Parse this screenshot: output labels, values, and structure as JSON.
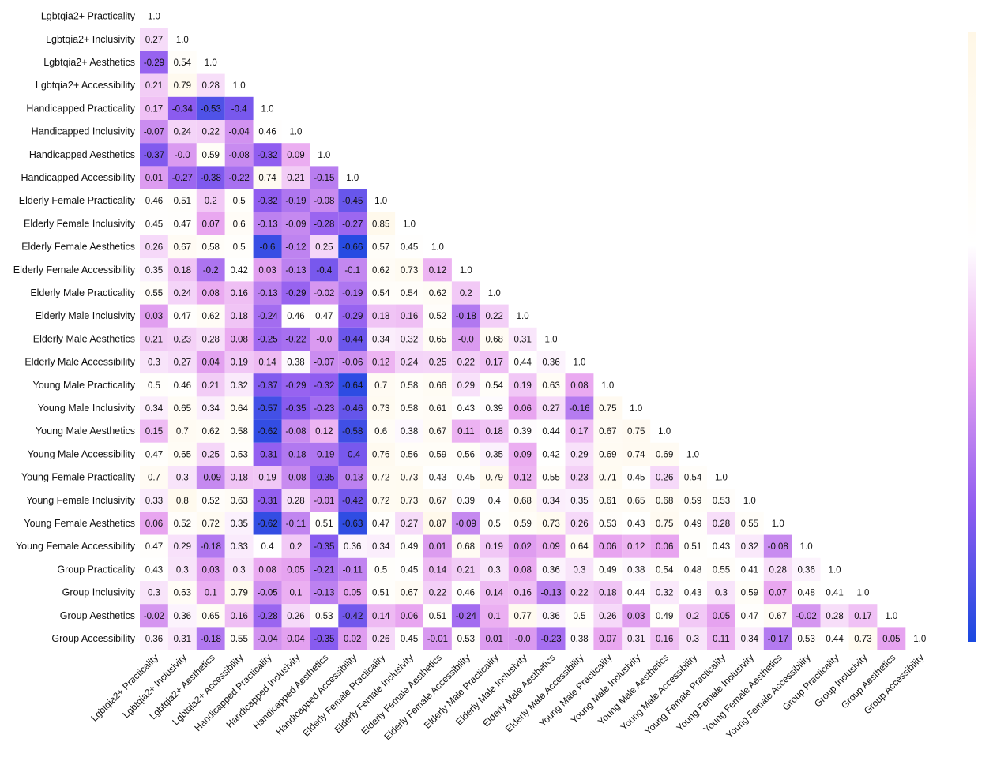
{
  "chart_data": {
    "type": "heatmap",
    "labels": [
      "Lgbtqia2+ Practicality",
      "Lgbtqia2+ Inclusivity",
      "Lgbtqia2+ Aesthetics",
      "Lgbtqia2+ Accessibility",
      "Handicapped Practicality",
      "Handicapped Inclusivity",
      "Handicapped Aesthetics",
      "Handicapped Accessibility",
      "Elderly Female Practicality",
      "Elderly Female Inclusivity",
      "Elderly Female Aesthetics",
      "Elderly Female Accessibility",
      "Elderly Male Practicality",
      "Elderly Male Inclusivity",
      "Elderly Male Aesthetics",
      "Elderly Male Accessibility",
      "Young Male Practicality",
      "Young Male Inclusivity",
      "Young Male Aesthetics",
      "Young Male Accessibility",
      "Young Female Practicality",
      "Young Female Inclusivity",
      "Young Female Aesthetics",
      "Young Female Accessibility",
      "Group Practicality",
      "Group Inclusivity",
      "Group Aesthetics",
      "Group Accessibility"
    ],
    "matrix": [
      [
        "1.0"
      ],
      [
        "0.27",
        "1.0"
      ],
      [
        "-0.29",
        "0.54",
        "1.0"
      ],
      [
        "0.21",
        "0.79",
        "0.28",
        "1.0"
      ],
      [
        "0.17",
        "-0.34",
        "-0.53",
        "-0.4",
        "1.0"
      ],
      [
        "-0.07",
        "0.24",
        "0.22",
        "-0.04",
        "0.46",
        "1.0"
      ],
      [
        "-0.37",
        "-0.0",
        "0.59",
        "-0.08",
        "-0.32",
        "0.09",
        "1.0"
      ],
      [
        "0.01",
        "-0.27",
        "-0.38",
        "-0.22",
        "0.74",
        "0.21",
        "-0.15",
        "1.0"
      ],
      [
        "0.46",
        "0.51",
        "0.2",
        "0.5",
        "-0.32",
        "-0.19",
        "-0.08",
        "-0.45",
        "1.0"
      ],
      [
        "0.45",
        "0.47",
        "0.07",
        "0.6",
        "-0.13",
        "-0.09",
        "-0.28",
        "-0.27",
        "0.85",
        "1.0"
      ],
      [
        "0.26",
        "0.67",
        "0.58",
        "0.5",
        "-0.6",
        "-0.12",
        "0.25",
        "-0.66",
        "0.57",
        "0.45",
        "1.0"
      ],
      [
        "0.35",
        "0.18",
        "-0.2",
        "0.42",
        "0.03",
        "-0.13",
        "-0.4",
        "-0.1",
        "0.62",
        "0.73",
        "0.12",
        "1.0"
      ],
      [
        "0.55",
        "0.24",
        "0.08",
        "0.16",
        "-0.13",
        "-0.29",
        "-0.02",
        "-0.19",
        "0.54",
        "0.54",
        "0.62",
        "0.2",
        "1.0"
      ],
      [
        "0.03",
        "0.47",
        "0.62",
        "0.18",
        "-0.24",
        "0.46",
        "0.47",
        "-0.29",
        "0.18",
        "0.16",
        "0.52",
        "-0.18",
        "0.22",
        "1.0"
      ],
      [
        "0.21",
        "0.23",
        "0.28",
        "0.08",
        "-0.25",
        "-0.22",
        "-0.0",
        "-0.44",
        "0.34",
        "0.32",
        "0.65",
        "-0.0",
        "0.68",
        "0.31",
        "1.0"
      ],
      [
        "0.3",
        "0.27",
        "0.04",
        "0.19",
        "0.14",
        "0.38",
        "-0.07",
        "-0.06",
        "0.12",
        "0.24",
        "0.25",
        "0.22",
        "0.17",
        "0.44",
        "0.36",
        "1.0"
      ],
      [
        "0.5",
        "0.46",
        "0.21",
        "0.32",
        "-0.37",
        "-0.29",
        "-0.32",
        "-0.64",
        "0.7",
        "0.58",
        "0.66",
        "0.29",
        "0.54",
        "0.19",
        "0.63",
        "0.08",
        "1.0"
      ],
      [
        "0.34",
        "0.65",
        "0.34",
        "0.64",
        "-0.57",
        "-0.35",
        "-0.23",
        "-0.46",
        "0.73",
        "0.58",
        "0.61",
        "0.43",
        "0.39",
        "0.06",
        "0.27",
        "-0.16",
        "0.75",
        "1.0"
      ],
      [
        "0.15",
        "0.7",
        "0.62",
        "0.58",
        "-0.62",
        "-0.08",
        "0.12",
        "-0.58",
        "0.6",
        "0.38",
        "0.67",
        "0.11",
        "0.18",
        "0.39",
        "0.44",
        "0.17",
        "0.67",
        "0.75",
        "1.0"
      ],
      [
        "0.47",
        "0.65",
        "0.25",
        "0.53",
        "-0.31",
        "-0.18",
        "-0.19",
        "-0.4",
        "0.76",
        "0.56",
        "0.59",
        "0.56",
        "0.35",
        "0.09",
        "0.42",
        "0.29",
        "0.69",
        "0.74",
        "0.69",
        "1.0"
      ],
      [
        "0.7",
        "0.3",
        "-0.09",
        "0.18",
        "0.19",
        "-0.08",
        "-0.35",
        "-0.13",
        "0.72",
        "0.73",
        "0.43",
        "0.45",
        "0.79",
        "0.12",
        "0.55",
        "0.23",
        "0.71",
        "0.45",
        "0.26",
        "0.54",
        "1.0"
      ],
      [
        "0.33",
        "0.8",
        "0.52",
        "0.63",
        "-0.31",
        "0.28",
        "-0.01",
        "-0.42",
        "0.72",
        "0.73",
        "0.67",
        "0.39",
        "0.4",
        "0.68",
        "0.34",
        "0.35",
        "0.61",
        "0.65",
        "0.68",
        "0.59",
        "0.53",
        "1.0"
      ],
      [
        "0.06",
        "0.52",
        "0.72",
        "0.35",
        "-0.62",
        "-0.11",
        "0.51",
        "-0.63",
        "0.47",
        "0.27",
        "0.87",
        "-0.09",
        "0.5",
        "0.59",
        "0.73",
        "0.26",
        "0.53",
        "0.43",
        "0.75",
        "0.49",
        "0.28",
        "0.55",
        "1.0"
      ],
      [
        "0.47",
        "0.29",
        "-0.18",
        "0.33",
        "0.4",
        "0.2",
        "-0.35",
        "0.36",
        "0.34",
        "0.49",
        "0.01",
        "0.68",
        "0.19",
        "0.02",
        "0.09",
        "0.64",
        "0.06",
        "0.12",
        "0.06",
        "0.51",
        "0.43",
        "0.32",
        "-0.08",
        "1.0"
      ],
      [
        "0.43",
        "0.3",
        "0.03",
        "0.3",
        "0.08",
        "0.05",
        "-0.21",
        "-0.11",
        "0.5",
        "0.45",
        "0.14",
        "0.21",
        "0.3",
        "0.08",
        "0.36",
        "0.3",
        "0.49",
        "0.38",
        "0.54",
        "0.48",
        "0.55",
        "0.41",
        "0.28",
        "0.36",
        "1.0"
      ],
      [
        "0.3",
        "0.63",
        "0.1",
        "0.79",
        "-0.05",
        "0.1",
        "-0.13",
        "0.05",
        "0.51",
        "0.67",
        "0.22",
        "0.46",
        "0.14",
        "0.16",
        "-0.13",
        "0.22",
        "0.18",
        "0.44",
        "0.32",
        "0.43",
        "0.3",
        "0.59",
        "0.07",
        "0.48",
        "0.41",
        "1.0"
      ],
      [
        "-0.02",
        "0.36",
        "0.65",
        "0.16",
        "-0.28",
        "0.26",
        "0.53",
        "-0.42",
        "0.14",
        "0.06",
        "0.51",
        "-0.24",
        "0.1",
        "0.77",
        "0.36",
        "0.5",
        "0.26",
        "0.03",
        "0.49",
        "0.2",
        "0.05",
        "0.47",
        "0.67",
        "-0.02",
        "0.28",
        "0.17",
        "1.0"
      ],
      [
        "0.36",
        "0.31",
        "-0.18",
        "0.55",
        "-0.04",
        "0.04",
        "-0.35",
        "0.02",
        "0.26",
        "0.45",
        "-0.01",
        "0.53",
        "0.01",
        "-0.0",
        "-0.23",
        "0.38",
        "0.07",
        "0.31",
        "0.16",
        "0.3",
        "0.11",
        "0.34",
        "-0.17",
        "0.53",
        "0.44",
        "0.73",
        "0.05",
        "1.0"
      ]
    ],
    "colormap": [
      "#1a49e0",
      "#8f5cf0",
      "#e9a6f0",
      "#ffffff",
      "#fff7e6"
    ],
    "vmin": -0.7,
    "vmax": 1.0,
    "mask": "upper-triangle",
    "colorbar": true
  }
}
